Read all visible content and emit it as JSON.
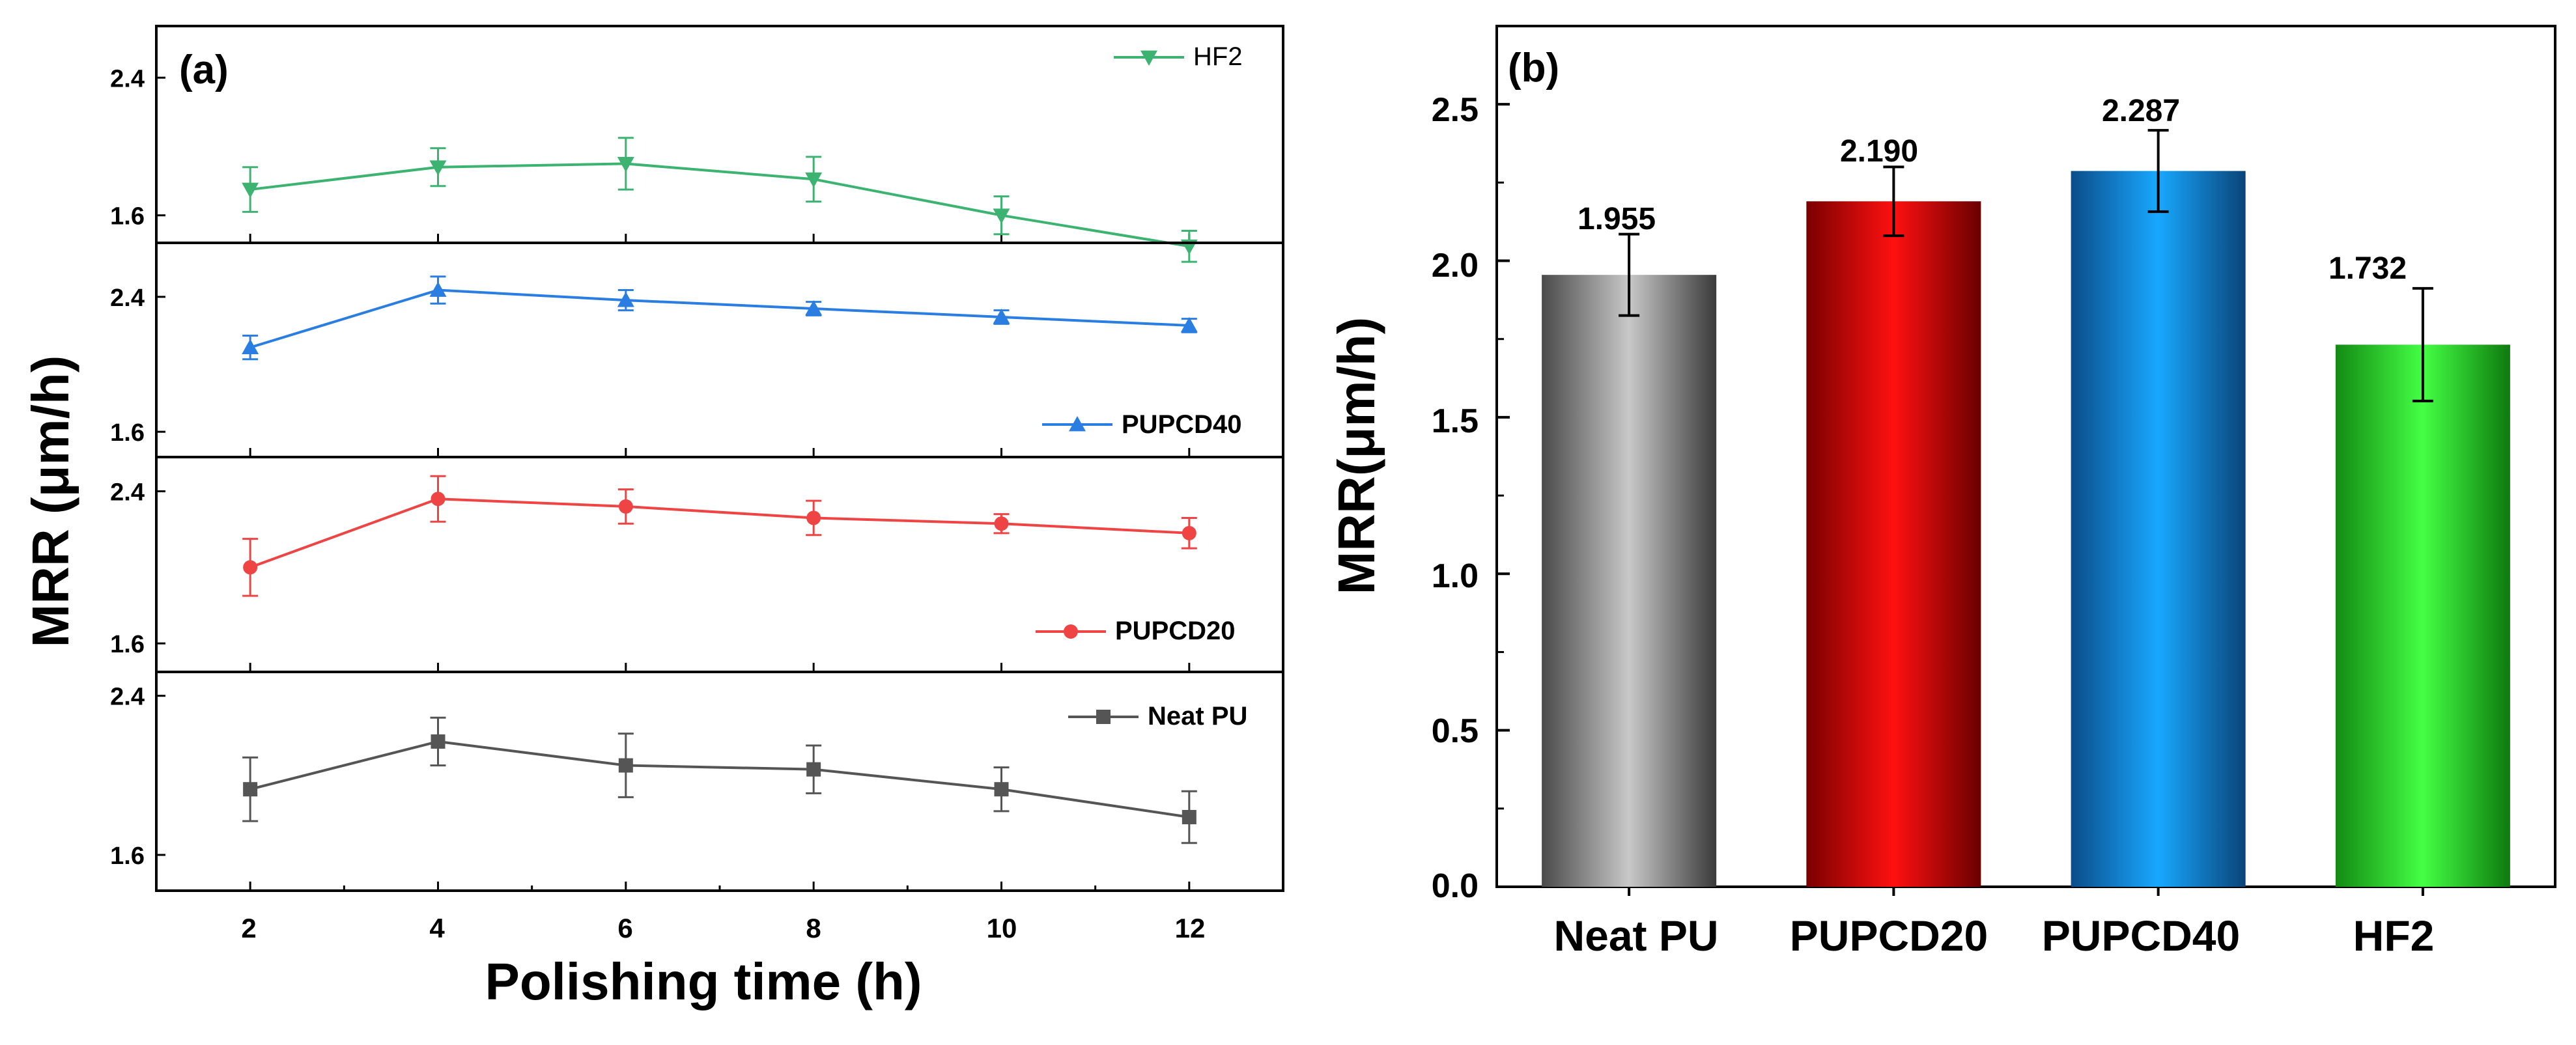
{
  "chart_data": [
    {
      "type": "line",
      "panel_label": "(a)",
      "xlabel": "Polishing time (h)",
      "ylabel": "MRR (μm/h)",
      "x": [
        2,
        4,
        6,
        8,
        10,
        12
      ],
      "xlim": [
        1,
        13
      ],
      "x_ticks": [
        "2",
        "4",
        "6",
        "8",
        "10",
        "12"
      ],
      "subplots": [
        {
          "name": "HF2",
          "color": "#3cb371",
          "marker": "triangle-down",
          "ylim": [
            1.44,
            2.7
          ],
          "y_ticks": [
            "1.6",
            "2.4"
          ],
          "values": [
            1.75,
            1.88,
            1.9,
            1.81,
            1.6,
            1.42
          ],
          "errors": [
            0.13,
            0.11,
            0.15,
            0.13,
            0.11,
            0.09
          ]
        },
        {
          "name": "PUPCD40",
          "color": "#2a7de1",
          "marker": "triangle-up",
          "ylim": [
            1.45,
            2.72
          ],
          "y_ticks": [
            "1.6",
            "2.4"
          ],
          "values": [
            2.1,
            2.44,
            2.38,
            2.33,
            2.28,
            2.23
          ],
          "errors": [
            0.07,
            0.08,
            0.06,
            0.04,
            0.04,
            0.04
          ]
        },
        {
          "name": "PUPCD20",
          "color": "#ee4444",
          "marker": "circle",
          "ylim": [
            1.45,
            2.58
          ],
          "y_ticks": [
            "1.6",
            "2.4"
          ],
          "values": [
            2.0,
            2.36,
            2.32,
            2.26,
            2.23,
            2.18
          ],
          "errors": [
            0.15,
            0.12,
            0.09,
            0.09,
            0.05,
            0.08
          ]
        },
        {
          "name": "Neat PU",
          "color": "#555555",
          "marker": "square",
          "ylim": [
            1.42,
            2.52
          ],
          "y_ticks": [
            "1.6",
            "2.4"
          ],
          "values": [
            1.93,
            2.17,
            2.05,
            2.03,
            1.93,
            1.79
          ],
          "errors": [
            0.16,
            0.12,
            0.16,
            0.12,
            0.11,
            0.13
          ]
        }
      ]
    },
    {
      "type": "bar",
      "panel_label": "(b)",
      "xlabel": "",
      "ylabel": "MRR(μm/h)",
      "categories": [
        "Neat PU",
        "PUPCD20",
        "PUPCD40",
        "HF2"
      ],
      "values": [
        1.955,
        2.19,
        2.287,
        1.732
      ],
      "value_labels": [
        "1.955",
        "2.190",
        "2.287",
        "1.732"
      ],
      "errors": [
        0.13,
        0.11,
        0.13,
        0.18
      ],
      "colors": [
        "#777777",
        "#e00000",
        "#1a86d8",
        "#2fd42f"
      ],
      "ylim": [
        0,
        2.75
      ],
      "y_ticks": [
        "0.0",
        "0.5",
        "1.0",
        "1.5",
        "2.0",
        "2.5"
      ]
    }
  ]
}
